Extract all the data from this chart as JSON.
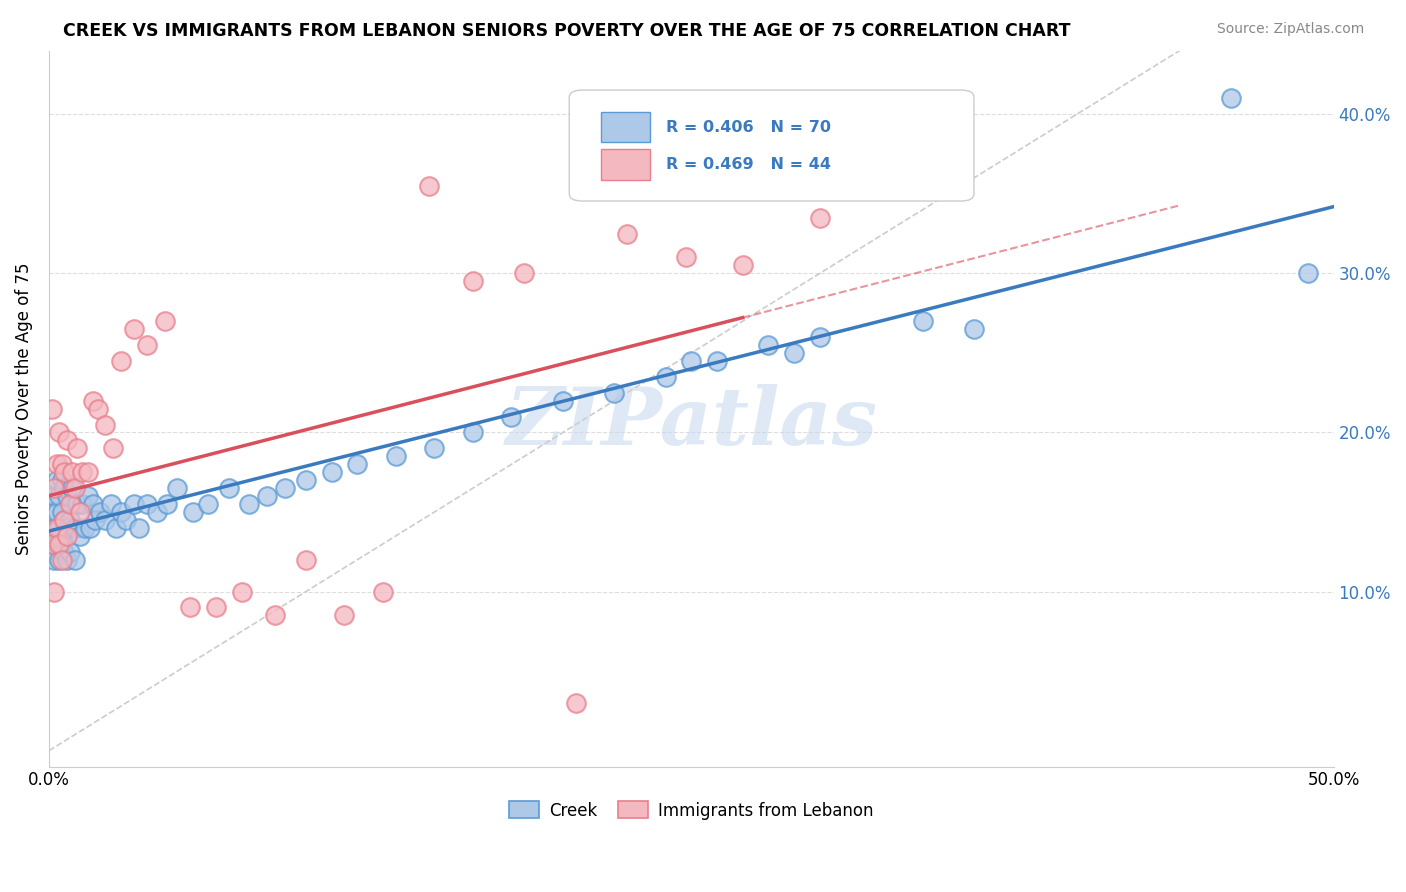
{
  "title": "CREEK VS IMMIGRANTS FROM LEBANON SENIORS POVERTY OVER THE AGE OF 75 CORRELATION CHART",
  "source": "Source: ZipAtlas.com",
  "ylabel": "Seniors Poverty Over the Age of 75",
  "xlim": [
    0.0,
    0.5
  ],
  "ylim": [
    -0.01,
    0.44
  ],
  "xtick_positions": [
    0.0,
    0.05,
    0.1,
    0.15,
    0.2,
    0.25,
    0.3,
    0.35,
    0.4,
    0.45,
    0.5
  ],
  "xticklabels": [
    "0.0%",
    "",
    "",
    "",
    "",
    "",
    "",
    "",
    "",
    "",
    "50.0%"
  ],
  "ytick_positions": [
    0.1,
    0.2,
    0.3,
    0.4
  ],
  "ytick_labels": [
    "10.0%",
    "20.0%",
    "30.0%",
    "40.0%"
  ],
  "creek_fill": "#aec8e8",
  "creek_edge": "#5b9bd5",
  "lebanon_fill": "#f4b8c1",
  "lebanon_edge": "#e87f8c",
  "trend_creek_color": "#3a7abf",
  "trend_lebanon_color": "#d94f5c",
  "creek_R": 0.406,
  "creek_N": 70,
  "lebanon_R": 0.469,
  "lebanon_N": 44,
  "watermark": "ZIPatlas",
  "ref_line_color": "#cccccc",
  "hgrid_color": "#dddddd",
  "creek_scatter_x": [
    0.001,
    0.001,
    0.002,
    0.002,
    0.002,
    0.003,
    0.003,
    0.003,
    0.004,
    0.004,
    0.004,
    0.005,
    0.005,
    0.005,
    0.006,
    0.006,
    0.006,
    0.007,
    0.007,
    0.007,
    0.008,
    0.008,
    0.009,
    0.01,
    0.01,
    0.011,
    0.012,
    0.013,
    0.014,
    0.015,
    0.016,
    0.017,
    0.018,
    0.02,
    0.022,
    0.024,
    0.026,
    0.028,
    0.03,
    0.033,
    0.035,
    0.038,
    0.042,
    0.046,
    0.05,
    0.056,
    0.062,
    0.07,
    0.078,
    0.085,
    0.092,
    0.1,
    0.11,
    0.12,
    0.135,
    0.15,
    0.165,
    0.18,
    0.2,
    0.22,
    0.24,
    0.26,
    0.28,
    0.3,
    0.34,
    0.36,
    0.25,
    0.29,
    0.46,
    0.49
  ],
  "creek_scatter_y": [
    0.13,
    0.15,
    0.12,
    0.14,
    0.16,
    0.13,
    0.15,
    0.17,
    0.12,
    0.14,
    0.16,
    0.13,
    0.15,
    0.17,
    0.125,
    0.145,
    0.165,
    0.12,
    0.14,
    0.16,
    0.125,
    0.145,
    0.165,
    0.12,
    0.14,
    0.155,
    0.135,
    0.155,
    0.14,
    0.16,
    0.14,
    0.155,
    0.145,
    0.15,
    0.145,
    0.155,
    0.14,
    0.15,
    0.145,
    0.155,
    0.14,
    0.155,
    0.15,
    0.155,
    0.165,
    0.15,
    0.155,
    0.165,
    0.155,
    0.16,
    0.165,
    0.17,
    0.175,
    0.18,
    0.185,
    0.19,
    0.2,
    0.21,
    0.22,
    0.225,
    0.235,
    0.245,
    0.255,
    0.26,
    0.27,
    0.265,
    0.245,
    0.25,
    0.41,
    0.3
  ],
  "lebanon_scatter_x": [
    0.001,
    0.001,
    0.002,
    0.002,
    0.003,
    0.003,
    0.004,
    0.004,
    0.005,
    0.005,
    0.006,
    0.006,
    0.007,
    0.007,
    0.008,
    0.009,
    0.01,
    0.011,
    0.012,
    0.013,
    0.015,
    0.017,
    0.019,
    0.022,
    0.025,
    0.028,
    0.033,
    0.038,
    0.045,
    0.055,
    0.065,
    0.075,
    0.088,
    0.1,
    0.115,
    0.13,
    0.148,
    0.165,
    0.185,
    0.205,
    0.225,
    0.248,
    0.27,
    0.3
  ],
  "lebanon_scatter_y": [
    0.13,
    0.215,
    0.1,
    0.165,
    0.14,
    0.18,
    0.13,
    0.2,
    0.12,
    0.18,
    0.145,
    0.175,
    0.135,
    0.195,
    0.155,
    0.175,
    0.165,
    0.19,
    0.15,
    0.175,
    0.175,
    0.22,
    0.215,
    0.205,
    0.19,
    0.245,
    0.265,
    0.255,
    0.27,
    0.09,
    0.09,
    0.1,
    0.085,
    0.12,
    0.085,
    0.1,
    0.355,
    0.295,
    0.3,
    0.03,
    0.325,
    0.31,
    0.305,
    0.335
  ]
}
